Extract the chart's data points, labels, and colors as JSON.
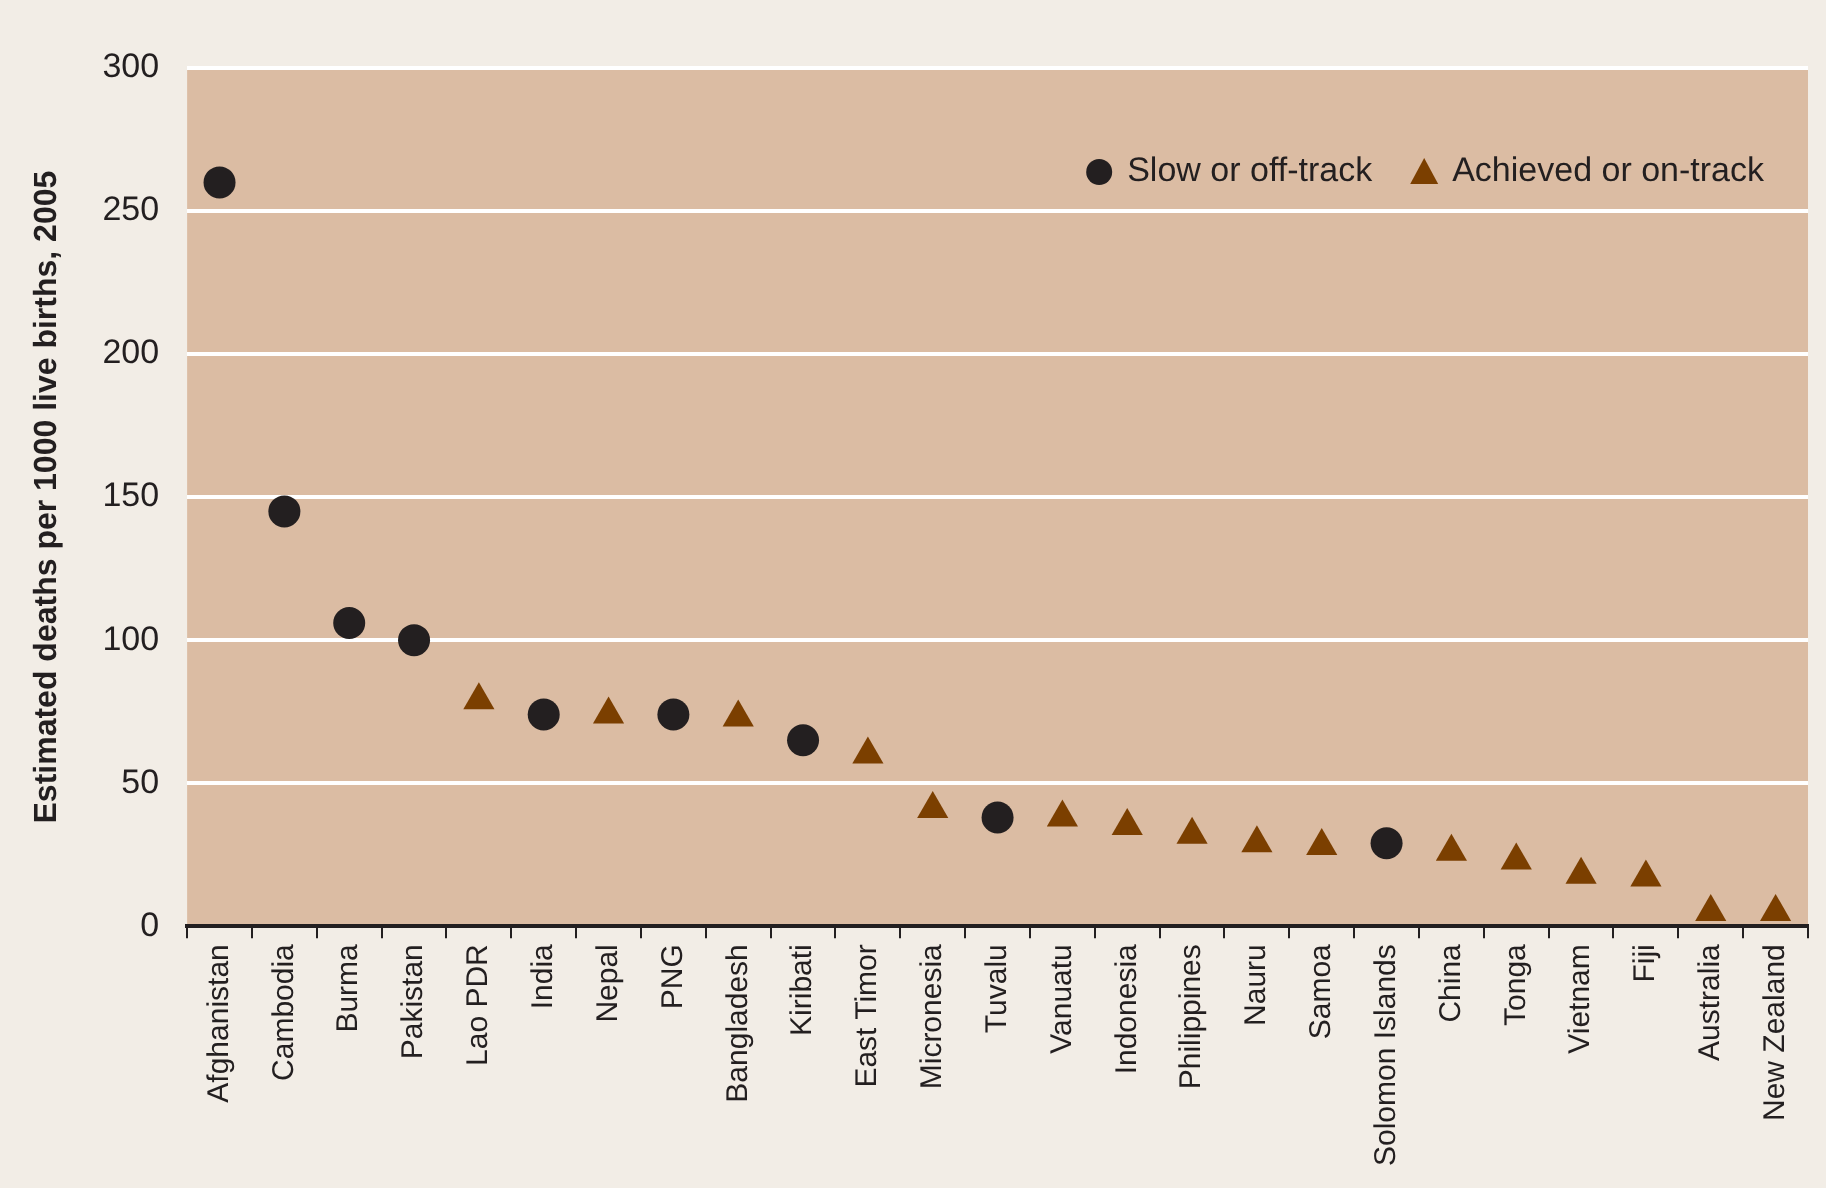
{
  "chart_data": {
    "type": "scatter",
    "ylabel": "Estimated deaths per 1000 live births, 2005",
    "categories": [
      "Afghanistan",
      "Cambodia",
      "Burma",
      "Pakistan",
      "Lao PDR",
      "India",
      "Nepal",
      "PNG",
      "Bangladesh",
      "Kiribati",
      "East Timor",
      "Micronesia",
      "Tuvalu",
      "Vanuatu",
      "Indonesia",
      "Philippines",
      "Nauru",
      "Samoa",
      "Solomon Islands",
      "China",
      "Tonga",
      "Vietnam",
      "Fiji",
      "Australia",
      "New Zealand"
    ],
    "series": [
      {
        "name": "Slow or off-track",
        "color": "#231f20",
        "marker": "circle",
        "values": [
          260,
          145,
          106,
          100,
          null,
          74,
          null,
          74,
          null,
          65,
          null,
          null,
          38,
          null,
          null,
          null,
          null,
          null,
          29,
          null,
          null,
          null,
          null,
          null,
          null
        ]
      },
      {
        "name": "Achieved or on-track",
        "color": "#7b3f00",
        "marker": "triangle",
        "values": [
          null,
          null,
          null,
          null,
          79,
          null,
          74,
          null,
          73,
          null,
          60,
          41,
          null,
          38,
          35,
          32,
          29,
          28,
          null,
          26,
          23,
          18,
          17,
          5,
          5
        ]
      }
    ],
    "ylim": [
      0,
      300
    ],
    "yticks": [
      0,
      50,
      100,
      150,
      200,
      250,
      300
    ],
    "grid": "y",
    "legend": "top right"
  }
}
